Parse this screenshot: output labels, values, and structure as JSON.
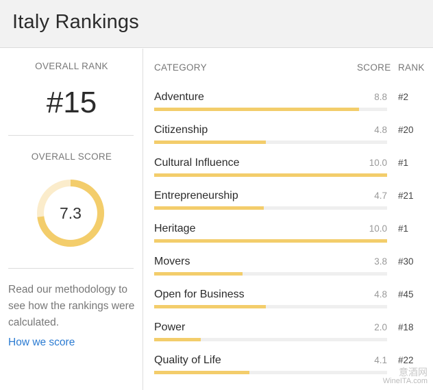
{
  "header": {
    "title": "Italy Rankings"
  },
  "overall": {
    "rank_label": "OVERALL RANK",
    "rank_value": "#15",
    "score_label": "OVERALL SCORE",
    "score_value": "7.3",
    "score_fraction": 0.73,
    "colors": {
      "ring": "#f3cd6b",
      "ring_track": "#fbeccb"
    }
  },
  "methodology": {
    "text": "Read our methodology to see how the rankings were calculated.",
    "link_label": "How we score"
  },
  "table": {
    "columns": {
      "category": "CATEGORY",
      "score": "SCORE",
      "rank": "RANK"
    },
    "rows": [
      {
        "category": "Adventure",
        "score": "8.8",
        "rank": "#2",
        "fraction": 0.88
      },
      {
        "category": "Citizenship",
        "score": "4.8",
        "rank": "#20",
        "fraction": 0.48
      },
      {
        "category": "Cultural Influence",
        "score": "10.0",
        "rank": "#1",
        "fraction": 1.0
      },
      {
        "category": "Entrepreneurship",
        "score": "4.7",
        "rank": "#21",
        "fraction": 0.47
      },
      {
        "category": "Heritage",
        "score": "10.0",
        "rank": "#1",
        "fraction": 1.0
      },
      {
        "category": "Movers",
        "score": "3.8",
        "rank": "#30",
        "fraction": 0.38
      },
      {
        "category": "Open for Business",
        "score": "4.8",
        "rank": "#45",
        "fraction": 0.48
      },
      {
        "category": "Power",
        "score": "2.0",
        "rank": "#18",
        "fraction": 0.2
      },
      {
        "category": "Quality of Life",
        "score": "4.1",
        "rank": "#22",
        "fraction": 0.41
      }
    ],
    "colors": {
      "bar": "#f3cd6b",
      "track": "#efefef"
    }
  },
  "watermark": {
    "line1": "意酒网",
    "line2": "WineITA.com"
  }
}
